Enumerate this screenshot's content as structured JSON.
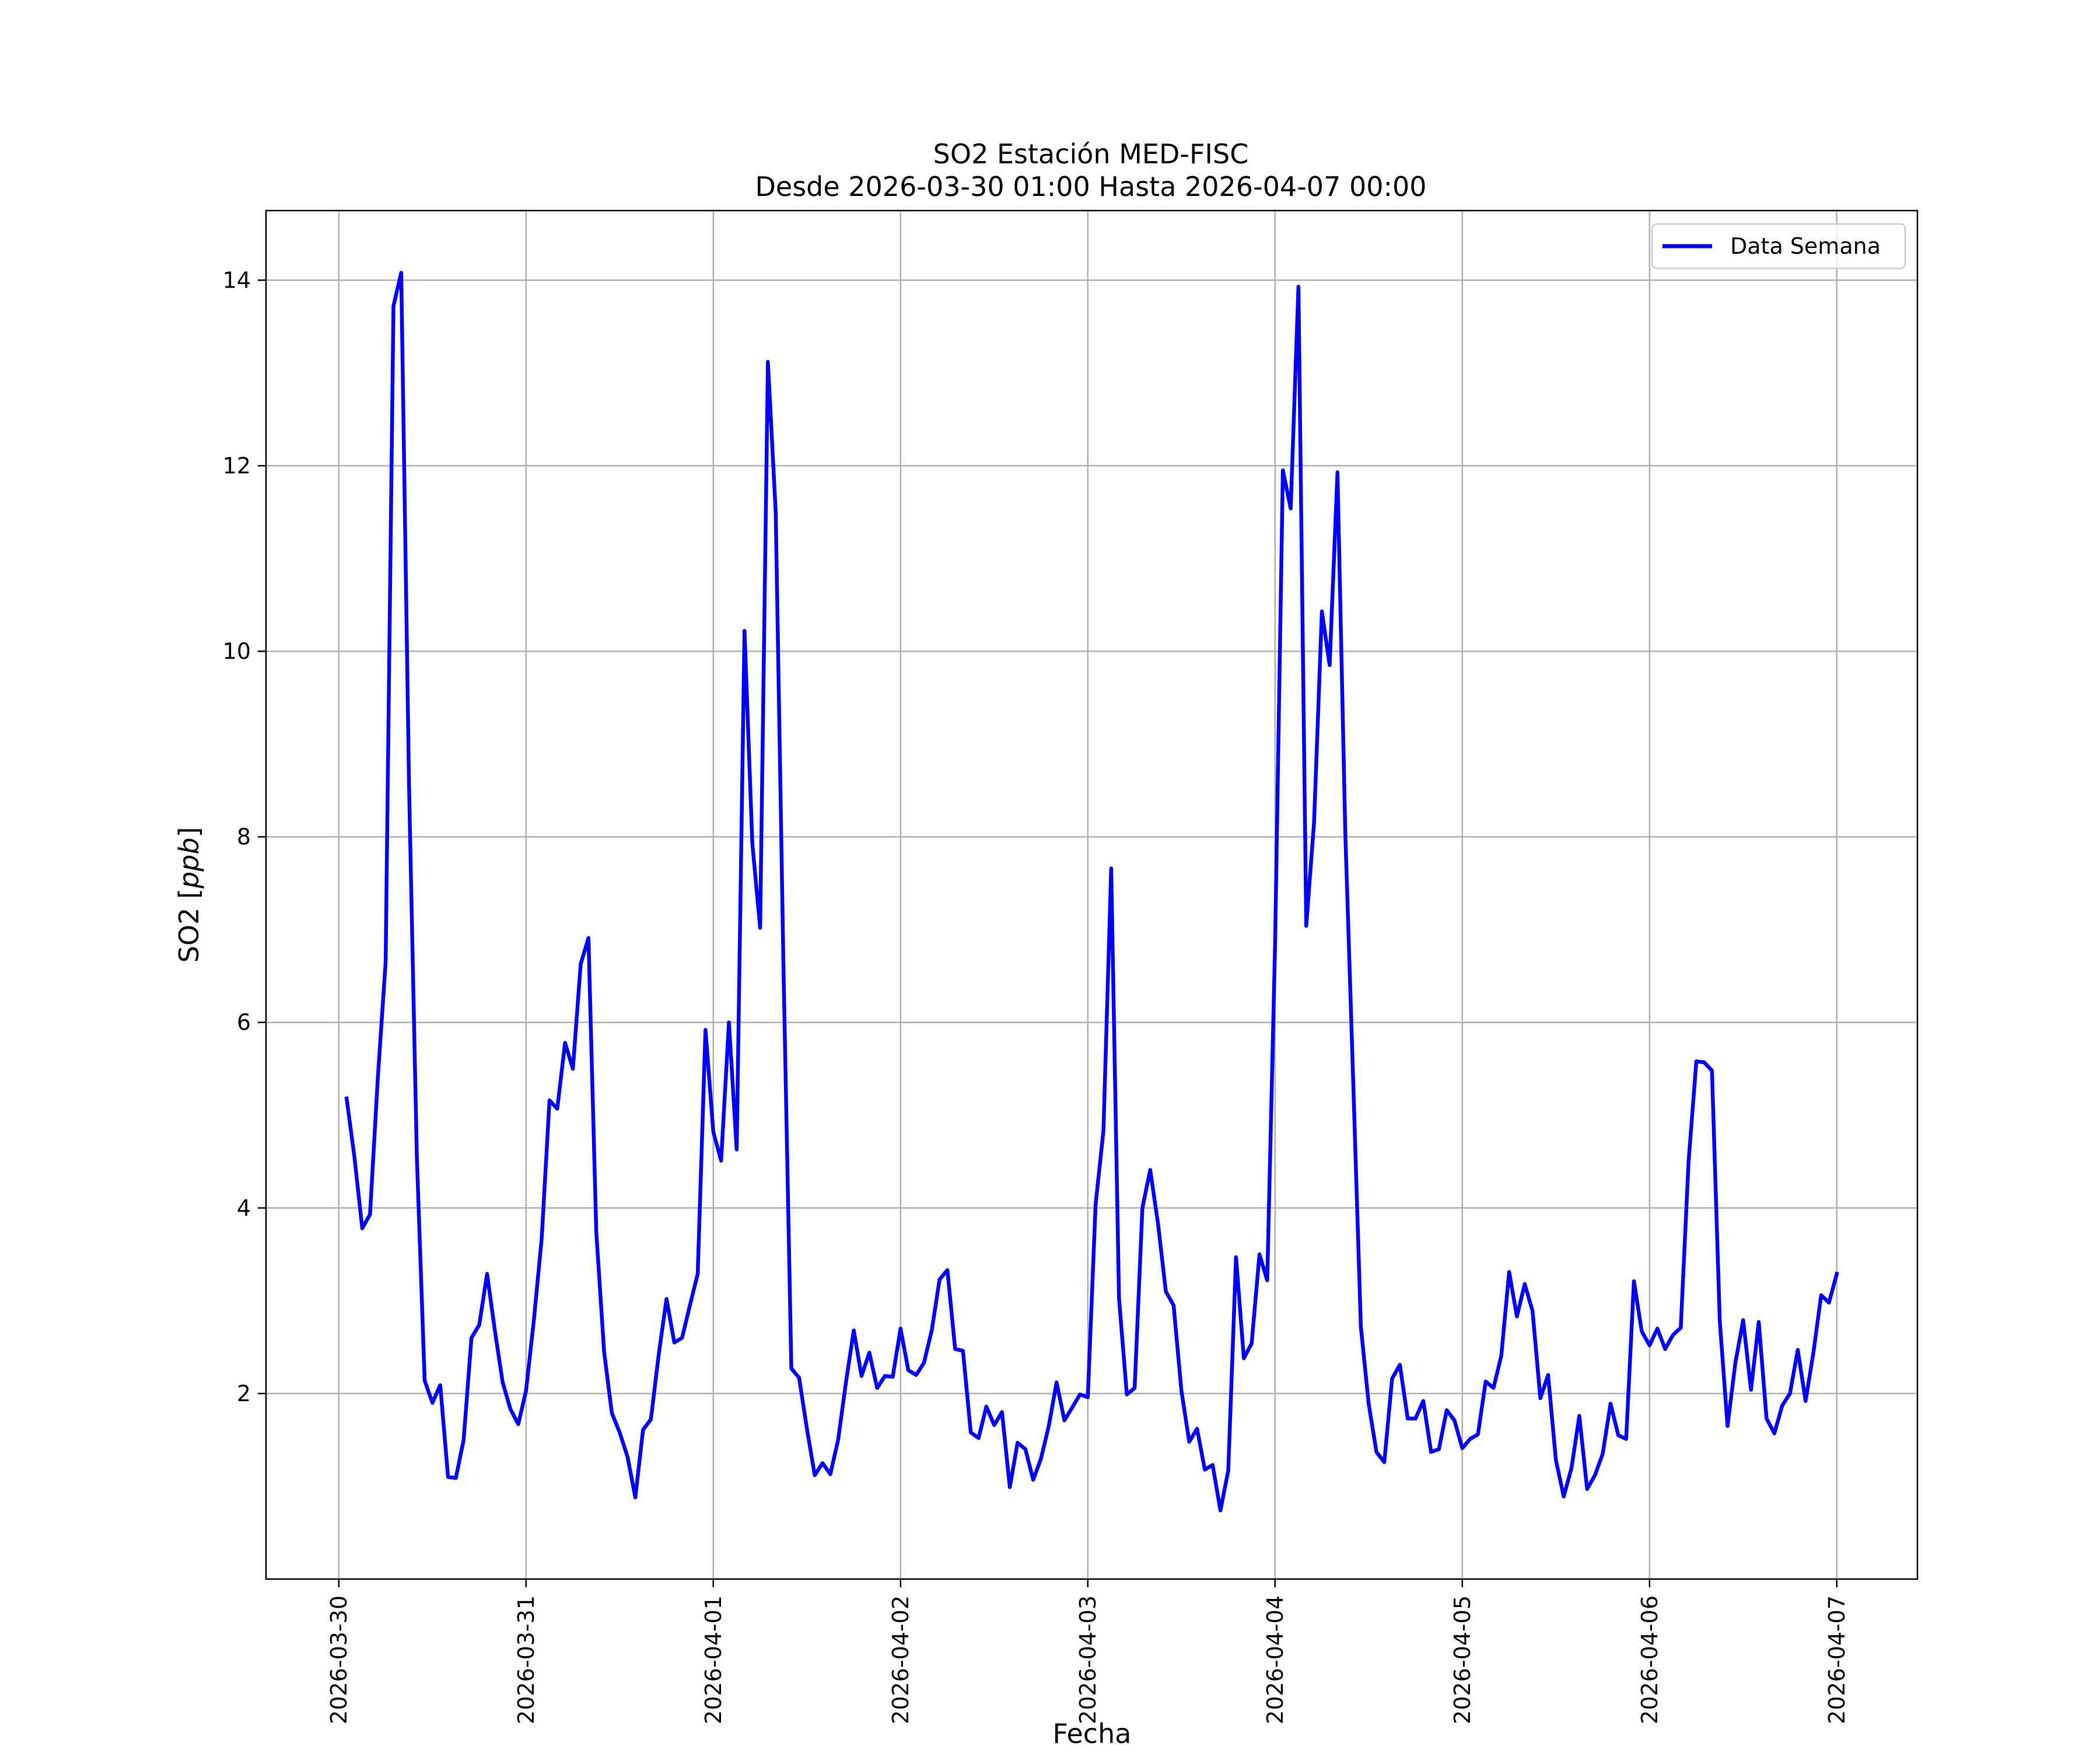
{
  "chart_data": {
    "type": "line",
    "title": "SO2 Estación MED-FISC",
    "subtitle": "Desde 2026-03-30 01:00 Hasta 2026-04-07 00:00",
    "xlabel": "Fecha",
    "ylabel_main": "SO2 [",
    "ylabel_unit": "ppb",
    "ylabel_close": "]",
    "x_start": "2026-03-30 01:00",
    "x_step_hours": 1,
    "x_ticks": [
      "2026-03-30",
      "2026-03-31",
      "2026-04-01",
      "2026-04-02",
      "2026-04-03",
      "2026-04-04",
      "2026-04-05",
      "2026-04-06",
      "2026-04-07"
    ],
    "y_ticks": [
      2,
      4,
      6,
      8,
      10,
      12,
      14
    ],
    "xlim": [
      "2026-03-29 14:40",
      "2026-04-07 10:20"
    ],
    "ylim": [
      0.0,
      14.75
    ],
    "grid": true,
    "legend_position": "top-right",
    "series": [
      {
        "name": "Data Semana",
        "color": "#0000ff",
        "values": [
          5.18,
          4.55,
          3.78,
          3.93,
          5.4,
          6.65,
          13.72,
          14.08,
          8.56,
          4.55,
          2.14,
          1.9,
          2.09,
          1.1,
          1.09,
          1.5,
          2.6,
          2.74,
          3.29,
          2.68,
          2.12,
          1.83,
          1.67,
          2.03,
          2.79,
          3.67,
          5.16,
          5.07,
          5.78,
          5.5,
          6.63,
          6.91,
          3.74,
          2.45,
          1.79,
          1.58,
          1.32,
          0.88,
          1.61,
          1.72,
          2.42,
          3.02,
          2.55,
          2.6,
          2.95,
          3.29,
          5.92,
          4.82,
          4.51,
          6.0,
          4.63,
          10.22,
          7.93,
          7.02,
          13.12,
          11.5,
          6.56,
          2.27,
          2.17,
          1.62,
          1.12,
          1.25,
          1.13,
          1.5,
          2.12,
          2.68,
          2.19,
          2.44,
          2.06,
          2.19,
          2.18,
          2.7,
          2.25,
          2.2,
          2.33,
          2.68,
          3.23,
          3.33,
          2.48,
          2.46,
          1.58,
          1.52,
          1.86,
          1.66,
          1.8,
          0.99,
          1.47,
          1.4,
          1.07,
          1.3,
          1.65,
          2.12,
          1.71,
          1.85,
          1.99,
          1.96,
          4.04,
          4.83,
          7.66,
          3.03,
          1.99,
          2.06,
          4.0,
          4.41,
          3.83,
          3.1,
          2.95,
          2.03,
          1.48,
          1.62,
          1.18,
          1.23,
          0.74,
          1.17,
          3.47,
          2.38,
          2.54,
          3.5,
          3.22,
          6.82,
          11.95,
          11.54,
          13.93,
          7.04,
          8.16,
          10.43,
          9.85,
          11.93,
          8.05,
          5.4,
          2.72,
          1.89,
          1.37,
          1.26,
          2.16,
          2.31,
          1.73,
          1.73,
          1.92,
          1.37,
          1.4,
          1.82,
          1.71,
          1.41,
          1.51,
          1.56,
          2.13,
          2.06,
          2.41,
          3.31,
          2.83,
          3.18,
          2.89,
          1.95,
          2.2,
          1.28,
          0.89,
          1.2,
          1.76,
          0.97,
          1.12,
          1.35,
          1.89,
          1.55,
          1.51,
          3.21,
          2.67,
          2.52,
          2.7,
          2.48,
          2.63,
          2.71,
          4.5,
          5.58,
          5.57,
          5.48,
          2.78,
          1.65,
          2.33,
          2.79,
          2.04,
          2.77,
          1.73,
          1.57,
          1.87,
          2.0,
          2.47,
          1.92,
          2.44,
          3.06,
          2.98,
          3.29
        ]
      }
    ]
  }
}
